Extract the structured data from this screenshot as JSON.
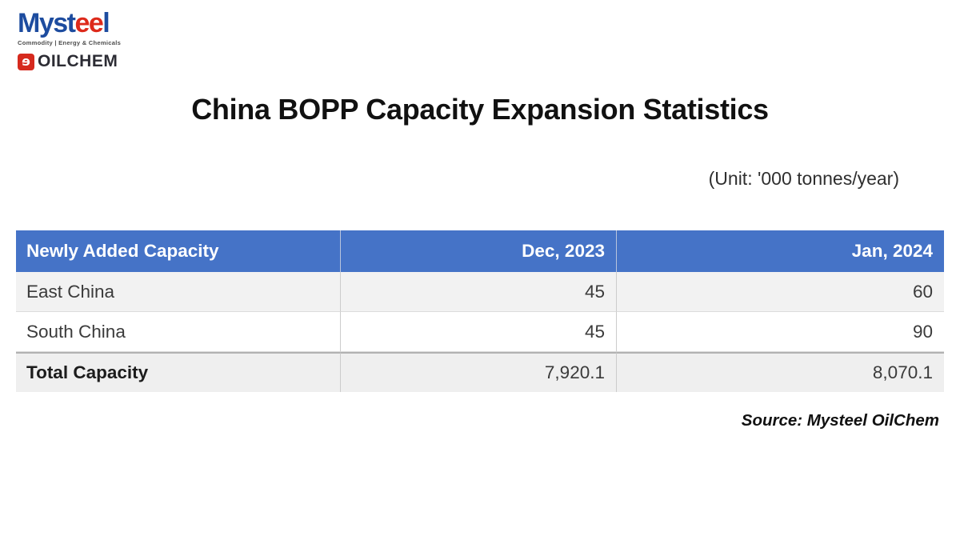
{
  "logo": {
    "wordmark_prefix": "Myst",
    "wordmark_swirl": "ee",
    "wordmark_suffix": "l",
    "tagline": "Commodity | Energy & Chemicals",
    "oilchem_icon_glyph": "ɘ",
    "oilchem_text": "OILCHEM",
    "colors": {
      "blue": "#1d4c9f",
      "red": "#dd2a1b",
      "dark": "#2c2c34"
    }
  },
  "header": {
    "title": "China BOPP Capacity Expansion Statistics",
    "unit_note": "(Unit: '000 tonnes/year)"
  },
  "table": {
    "header_bg": "#4573c7",
    "header_text_color": "#ffffff",
    "columns": [
      "Newly Added Capacity",
      "Dec, 2023",
      "Jan, 2024"
    ],
    "rows": [
      {
        "label": "East China",
        "values": [
          "45",
          "60"
        ]
      },
      {
        "label": "South China",
        "values": [
          "45",
          "90"
        ]
      },
      {
        "label": "Total Capacity",
        "values": [
          "7,920.1",
          "8,070.1"
        ]
      }
    ]
  },
  "footer": {
    "source": "Source: Mysteel OilChem"
  },
  "chart_data": {
    "type": "table",
    "title": "China BOPP Capacity Expansion Statistics",
    "unit": "'000 tonnes/year",
    "columns": [
      "Newly Added Capacity",
      "Dec, 2023",
      "Jan, 2024"
    ],
    "rows": [
      [
        "East China",
        45,
        60
      ],
      [
        "South China",
        45,
        90
      ],
      [
        "Total Capacity",
        7920.1,
        8070.1
      ]
    ],
    "source": "Mysteel OilChem"
  }
}
